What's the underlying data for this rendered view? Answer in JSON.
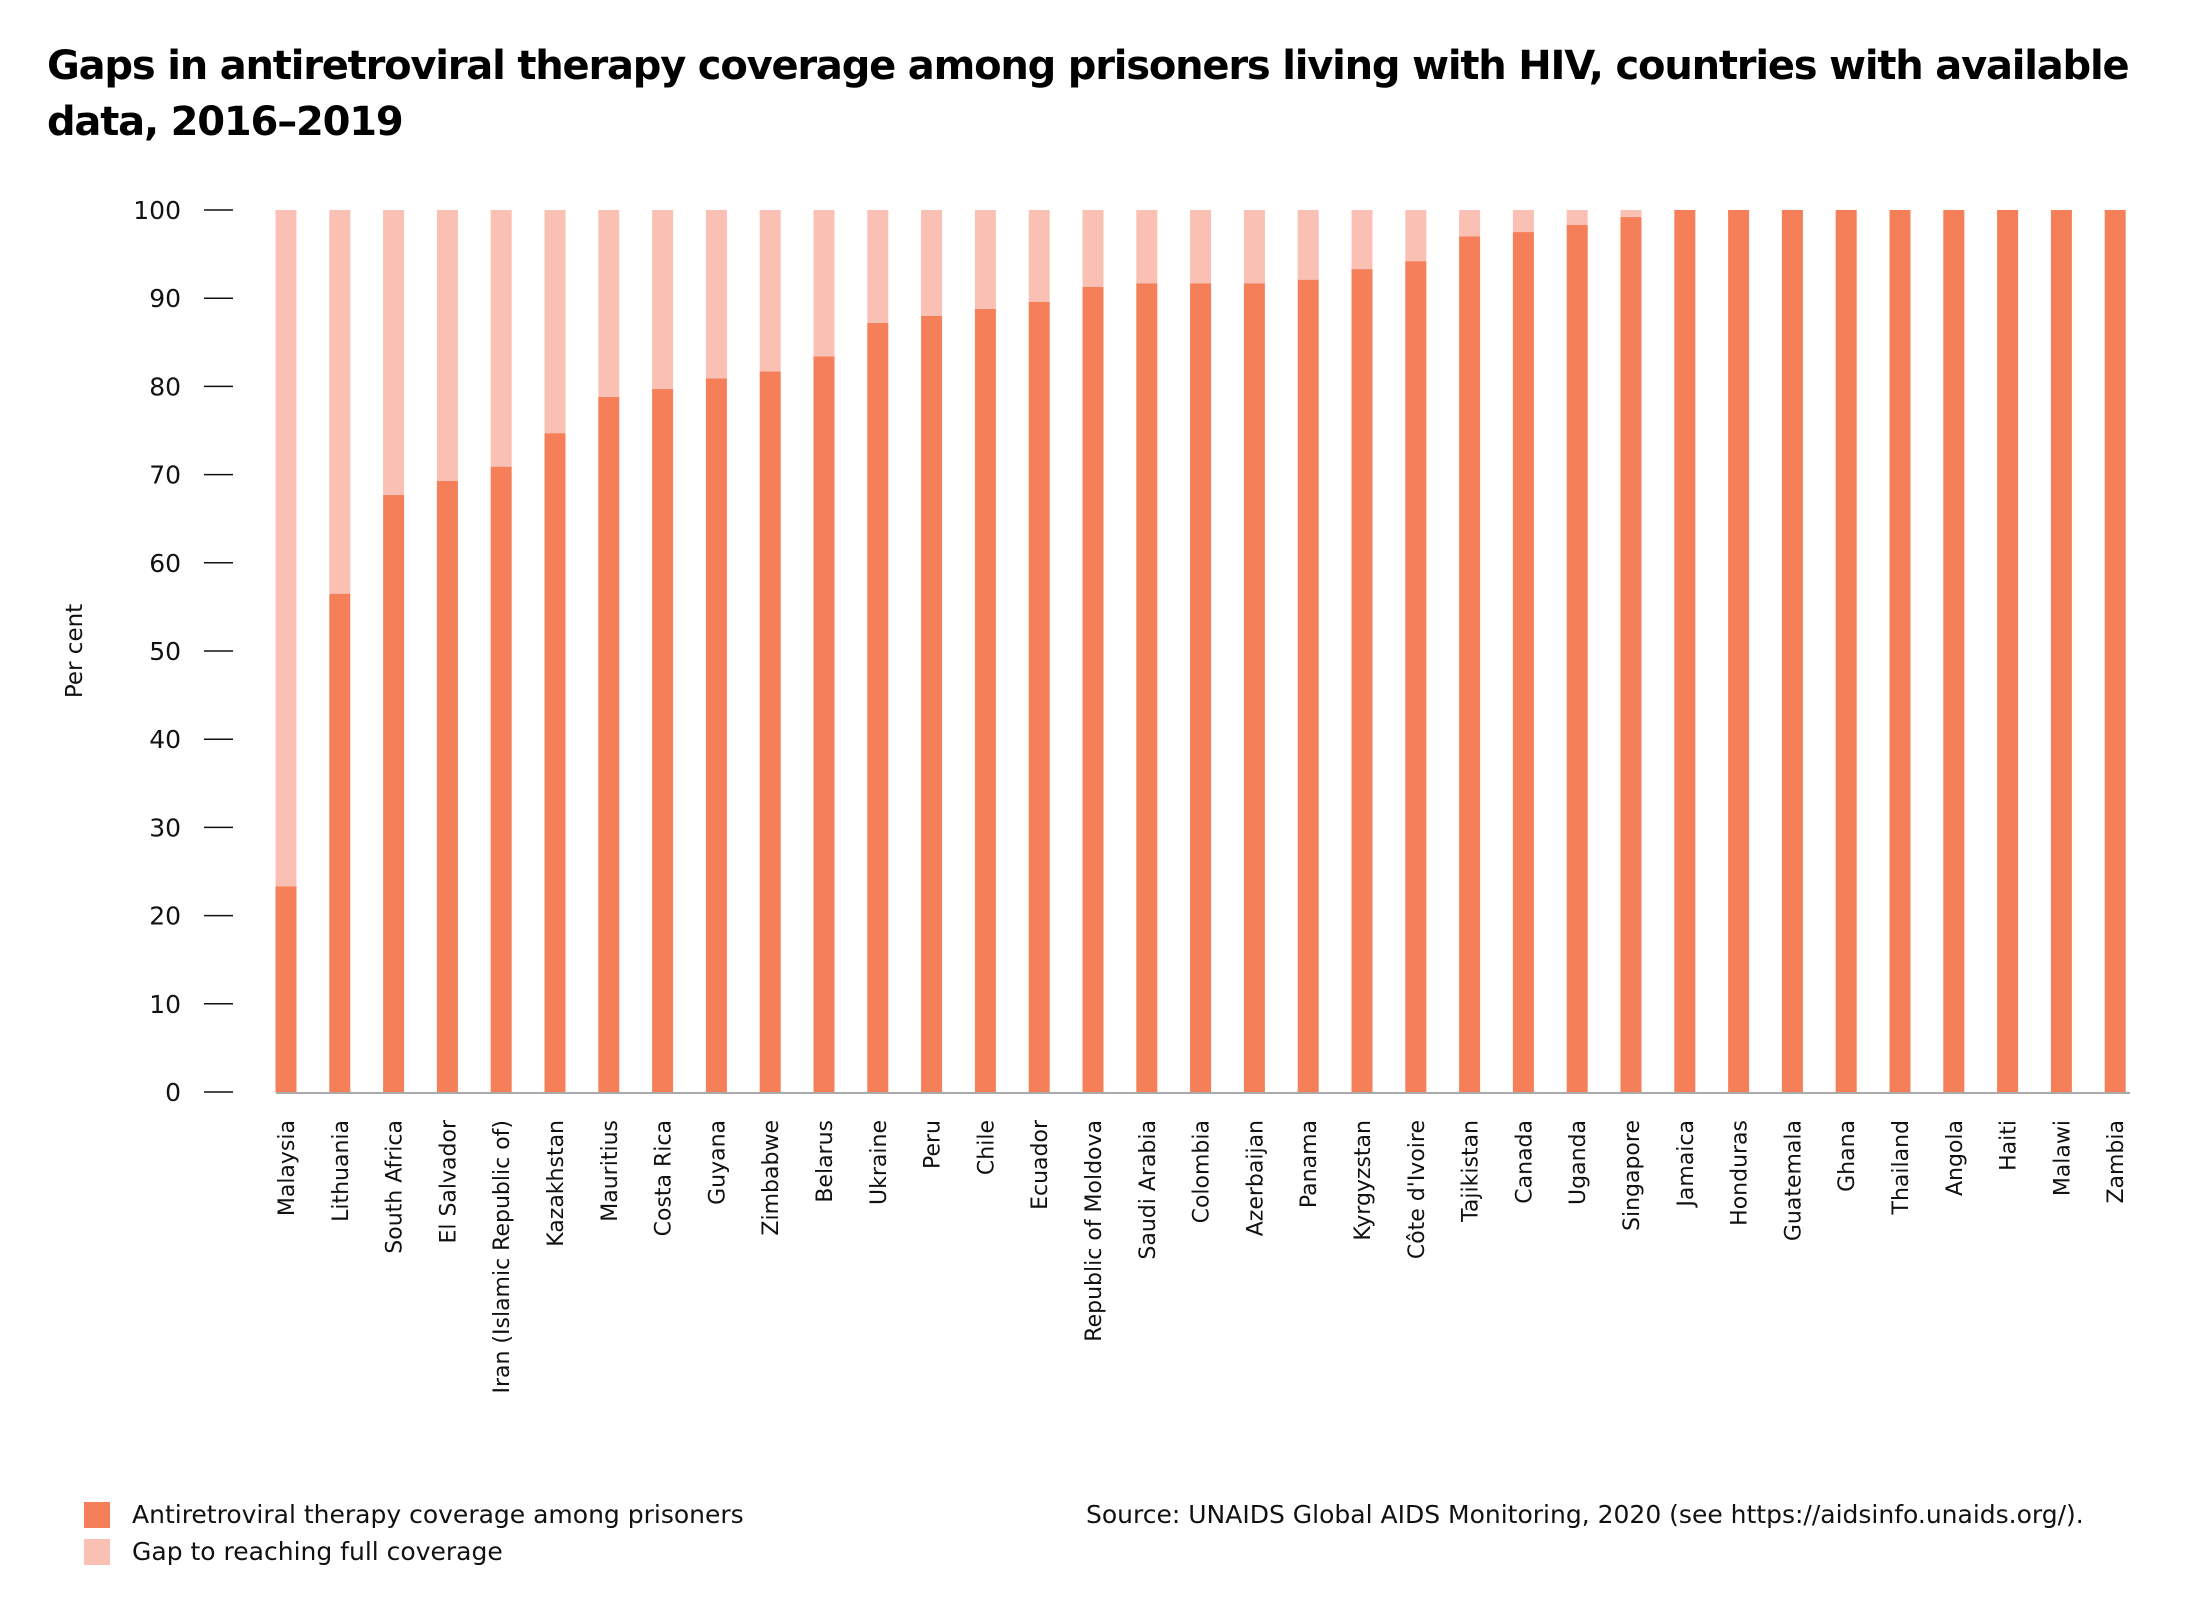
{
  "title": "Gaps in antiretroviral therapy coverage among prisoners living with HIV, countries with available data, 2016–2019",
  "source": "Source: UNAIDS Global AIDS Monitoring, 2020 (see https://aidsinfo.unaids.org/).",
  "colors": {
    "coverage": "#F47F58",
    "gap": "#F9C0B3",
    "axis": "#AAAAAA",
    "text": "#111111"
  },
  "legend": [
    {
      "label": "Antiretroviral therapy coverage among prisoners",
      "color": "#F47F58"
    },
    {
      "label": "Gap to reaching full coverage",
      "color": "#F9C0B3"
    }
  ],
  "chart_data": {
    "type": "bar",
    "stacked": true,
    "title": "Gaps in antiretroviral therapy coverage among prisoners living with HIV, countries with available data, 2016–2019",
    "xlabel": "",
    "ylabel": "Per cent",
    "ylim": [
      0,
      100
    ],
    "yticks": [
      0,
      10,
      20,
      30,
      40,
      50,
      60,
      70,
      80,
      90,
      100
    ],
    "grid": false,
    "legend_position": "bottom-left",
    "categories": [
      "Malaysia",
      "Lithuania",
      "South Africa",
      "El Salvador",
      "Iran (Islamic Republic of)",
      "Kazakhstan",
      "Mauritius",
      "Costa Rica",
      "Guyana",
      "Zimbabwe",
      "Belarus",
      "Ukraine",
      "Peru",
      "Chile",
      "Ecuador",
      "Republic of Moldova",
      "Saudi Arabia",
      "Colombia",
      "Azerbaijan",
      "Panama",
      "Kyrgyzstan",
      "Côte d'Ivoire",
      "Tajikistan",
      "Canada",
      "Uganda",
      "Singapore",
      "Jamaica",
      "Honduras",
      "Guatemala",
      "Ghana",
      "Thailand",
      "Angola",
      "Haiti",
      "Malawi",
      "Zambia"
    ],
    "series": [
      {
        "name": "Antiretroviral therapy coverage among prisoners",
        "values": [
          23.3,
          56.5,
          67.7,
          69.3,
          70.9,
          74.7,
          78.8,
          79.7,
          80.9,
          81.7,
          83.4,
          87.2,
          88.0,
          88.8,
          89.6,
          91.3,
          91.7,
          91.7,
          91.7,
          92.1,
          93.3,
          94.2,
          97.0,
          97.5,
          98.3,
          99.2,
          100,
          100,
          100,
          100,
          100,
          100,
          100,
          100,
          100
        ]
      },
      {
        "name": "Gap to reaching full coverage",
        "values": [
          76.7,
          43.5,
          32.3,
          30.7,
          29.1,
          25.3,
          21.2,
          20.3,
          19.1,
          18.3,
          16.6,
          12.8,
          12.0,
          11.2,
          10.4,
          8.7,
          8.3,
          8.3,
          8.3,
          7.9,
          6.7,
          5.8,
          3.0,
          2.5,
          1.7,
          0.8,
          0,
          0,
          0,
          0,
          0,
          0,
          0,
          0,
          0
        ]
      }
    ]
  }
}
